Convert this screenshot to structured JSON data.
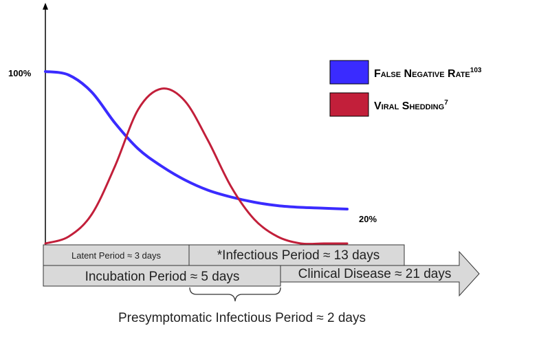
{
  "chart_data": {
    "type": "line",
    "title": "",
    "xlabel": "",
    "ylabel": "",
    "y_tick_labels": {
      "top": "100%"
    },
    "end_label": "20%",
    "ylim": [
      0,
      100
    ],
    "x": [
      0,
      1,
      2,
      3,
      4,
      5,
      6,
      7,
      8,
      9,
      10,
      11,
      12,
      13
    ],
    "series": [
      {
        "name_main": "False Negative Rate",
        "name_sup": "103",
        "color": "#3a2bff",
        "values": [
          100,
          98,
          88,
          70,
          55,
          45,
          37,
          31,
          27,
          24,
          22,
          21,
          20.5,
          20
        ]
      },
      {
        "name_main": "Viral Shedding",
        "name_sup": "7",
        "color": "#c21f3a",
        "values": [
          0,
          4,
          17,
          45,
          78,
          90,
          83,
          60,
          33,
          14,
          4,
          0,
          0,
          0
        ]
      }
    ],
    "grid": false,
    "legend": "top-right"
  },
  "timeline": {
    "latent_period": "Latent Period ≈ 3 days",
    "infectious_period": "*Infectious Period ≈ 13 days",
    "incubation_period": "Incubation Period ≈ 5 days",
    "clinical_disease": "Clinical Disease ≈ 21 days",
    "presymptomatic": "Presymptomatic Infectious Period ≈ 2 days",
    "box_fill": "#d9d9d9"
  }
}
